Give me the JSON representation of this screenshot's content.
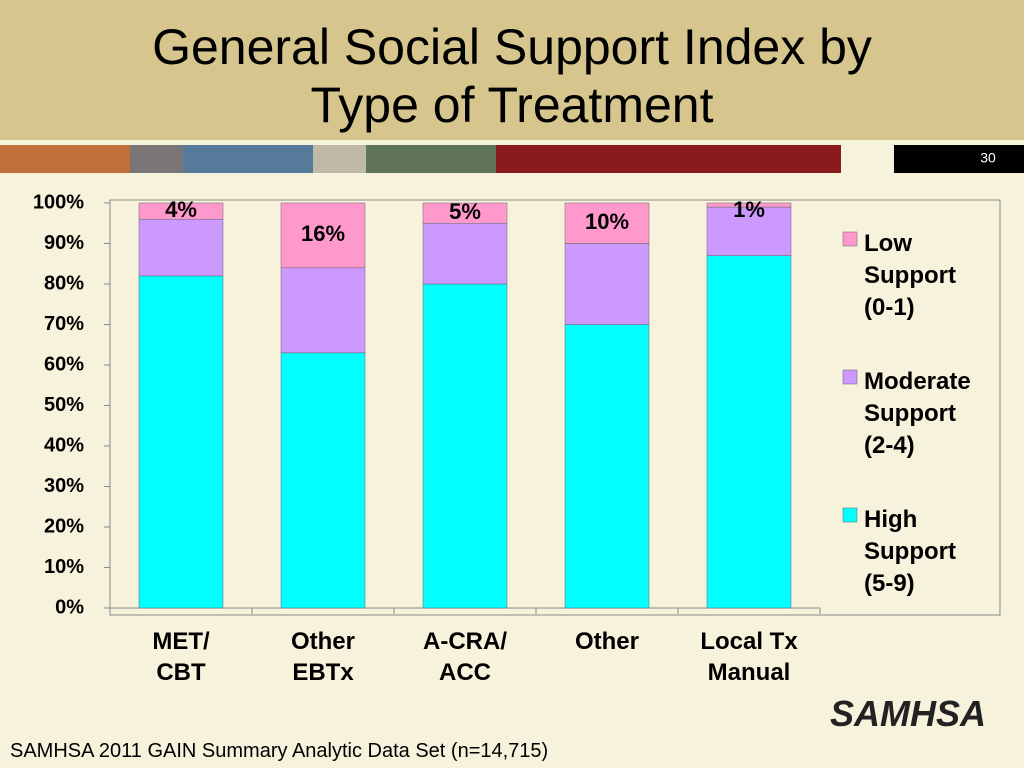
{
  "chart_data": {
    "type": "stacked-bar",
    "title": "General Social Support Index by\nType of Treatment",
    "slide_number": "30",
    "footnote": "SAMHSA 2011 GAIN Summary Analytic Data Set (n=14,715)",
    "logo": "SAMHSA",
    "categories": [
      "MET/\nCBT",
      "Other\nEBTx",
      "A-CRA/\nACC",
      "Other",
      "Local Tx\nManual"
    ],
    "series": [
      {
        "name": "High\nSupport\n(5-9)",
        "color": "#00ffff",
        "values": [
          82,
          63,
          80,
          70,
          87
        ]
      },
      {
        "name": "Moderate\nSupport\n(2-4)",
        "color": "#cc99ff",
        "values": [
          14,
          21,
          15,
          20,
          12
        ]
      },
      {
        "name": "Low\nSupport\n(0-1)",
        "color": "#ff99cc",
        "values": [
          4,
          16,
          5,
          10,
          1
        ],
        "value_labels": [
          "4%",
          "16%",
          "5%",
          "10%",
          "1%"
        ]
      }
    ],
    "ylim": [
      0,
      100
    ],
    "yticks": [
      {
        "value": 0,
        "label": "0%"
      },
      {
        "value": 10,
        "label": "10%"
      },
      {
        "value": 20,
        "label": "20%"
      },
      {
        "value": 30,
        "label": "30%"
      },
      {
        "value": 40,
        "label": "40%"
      },
      {
        "value": 50,
        "label": "50%"
      },
      {
        "value": 60,
        "label": "60%"
      },
      {
        "value": 70,
        "label": "70%"
      },
      {
        "value": 80,
        "label": "80%"
      },
      {
        "value": 90,
        "label": "90%"
      },
      {
        "value": 100,
        "label": "100%"
      }
    ],
    "legend": "right"
  }
}
